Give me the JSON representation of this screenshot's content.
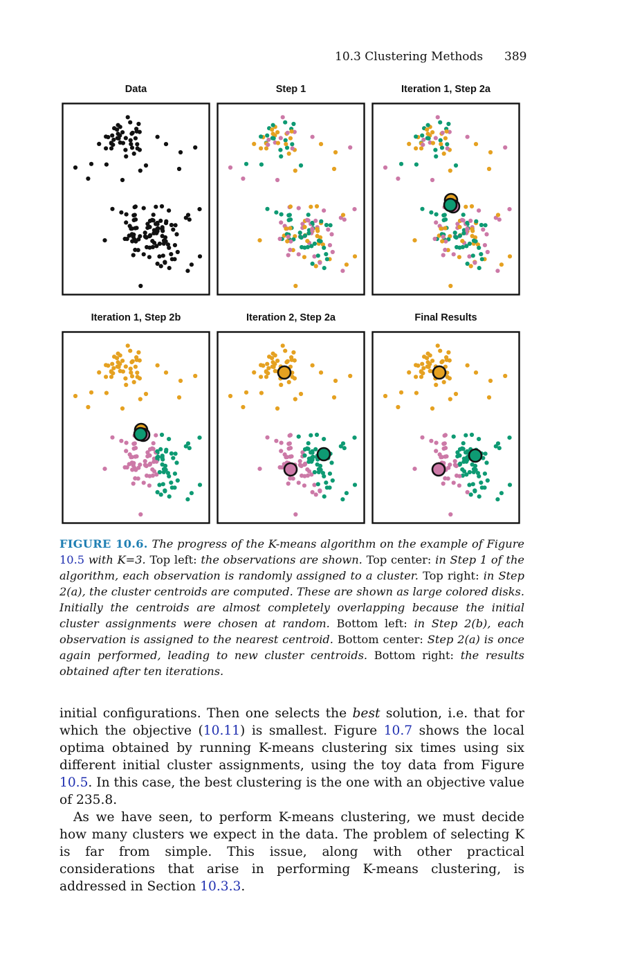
{
  "header": {
    "running_title": "10.3 Clustering Methods",
    "page_number": "389"
  },
  "colors": {
    "black": "#111111",
    "orange": "#e5a121",
    "pink": "#cc79a7",
    "green": "#0e9a73",
    "figure_label": "#1f7fb3",
    "link": "#1f2fb0"
  },
  "panels": [
    {
      "title": "Data"
    },
    {
      "title": "Step 1"
    },
    {
      "title": "Iteration 1, Step 2a"
    },
    {
      "title": "Iteration 1, Step 2b"
    },
    {
      "title": "Iteration 2, Step 2a"
    },
    {
      "title": "Final Results"
    }
  ],
  "caption": {
    "label": "FIGURE 10.6.",
    "s1": "The progress of the K-means algorithm on the example of Figure",
    "ref1": "10.5",
    "s2": "with K=3.",
    "p1": "Top left:",
    "s3": "the observations are shown.",
    "p2": "Top center:",
    "s4": "in Step 1 of the algorithm, each observation is randomly assigned to a cluster.",
    "p3": "Top right:",
    "s5": "in Step 2(a), the cluster centroids are computed. These are shown as large colored disks. Initially the centroids are almost completely overlapping because the initial cluster assignments were chosen at random.",
    "p4": "Bottom left:",
    "s6": "in Step 2(b), each observation is assigned to the nearest centroid.",
    "p5": "Bottom center:",
    "s7": "Step 2(a) is once again performed, leading to new cluster centroids.",
    "p6": "Bottom right:",
    "s8": "the results obtained after ten iterations."
  },
  "body": {
    "p1_a": "initial configurations. Then one selects the",
    "p1_b": "best",
    "p1_c": "solution, i.e. that for which the objective (",
    "p1_ref1": "10.11",
    "p1_d": ") is smallest. Figure",
    "p1_ref2": "10.7",
    "p1_e": "shows the local optima obtained by running K-means clustering six times using six different initial cluster assignments, using the toy data from Figure",
    "p1_ref3": "10.5",
    "p1_f": ". In this case, the best clustering is the one with an objective value of 235.8.",
    "p2_a": "As we have seen, to perform K-means clustering, we must decide how many clusters we expect in the data. The problem of selecting K is far from simple. This issue, along with other practical considerations that arise in performing K-means clustering, is addressed in Section",
    "p2_ref": "10.3.3",
    "p2_b": "."
  }
}
